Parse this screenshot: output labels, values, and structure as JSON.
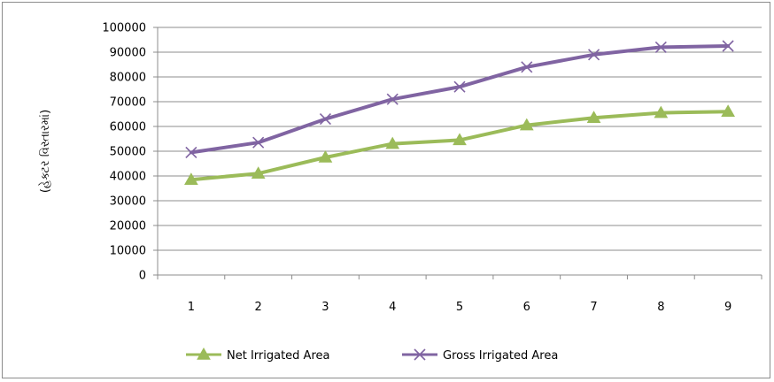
{
  "chart_data": {
    "type": "line",
    "title": "",
    "xlabel": "",
    "ylabel": "(હેક્ટર વિસ્તારમાં)",
    "categories": [
      "1",
      "2",
      "3",
      "4",
      "5",
      "6",
      "7",
      "8",
      "9"
    ],
    "ylim": [
      0,
      100000
    ],
    "yticks": [
      0,
      10000,
      20000,
      30000,
      40000,
      50000,
      60000,
      70000,
      80000,
      90000,
      100000
    ],
    "grid": true,
    "legend_position": "bottom",
    "series": [
      {
        "name": "Net Irrigated Area",
        "color": "#9bbb59",
        "marker": "triangle",
        "values": [
          38500,
          41000,
          47500,
          53000,
          54500,
          60500,
          63500,
          65500,
          66000
        ]
      },
      {
        "name": "Gross Irrigated Area",
        "color": "#8064a2",
        "marker": "x",
        "values": [
          49500,
          53500,
          63000,
          71000,
          76000,
          84000,
          89000,
          92000,
          92500
        ]
      }
    ]
  }
}
